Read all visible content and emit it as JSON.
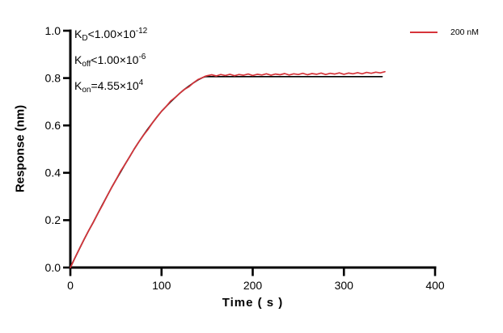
{
  "chart_data": {
    "type": "line",
    "title": "",
    "xlabel": "Time ( s )",
    "ylabel": "Response (nm)",
    "xlim": [
      0,
      400
    ],
    "ylim": [
      0,
      1.0
    ],
    "xticks": [
      0,
      100,
      200,
      300,
      400
    ],
    "yticks": [
      "0.0",
      "0.2",
      "0.4",
      "0.6",
      "0.8",
      "1.0"
    ],
    "grid": false,
    "legend_position": "top-right",
    "axis_color": "#000000",
    "annotations": [
      {
        "base": "K",
        "sub": "D",
        "mid": "<1.00×10",
        "sup": "-12"
      },
      {
        "base": "K",
        "sub": "off",
        "mid": "<1.00×10",
        "sup": "-6"
      },
      {
        "base": "K",
        "sub": "on",
        "mid": "=4.55×10",
        "sup": "4"
      }
    ],
    "series": [
      {
        "name": "200 nM",
        "role": "measured-data",
        "color": "#d6343a",
        "points": [
          [
            0,
            0.0
          ],
          [
            5,
            0.04
          ],
          [
            10,
            0.08
          ],
          [
            15,
            0.118
          ],
          [
            20,
            0.155
          ],
          [
            25,
            0.19
          ],
          [
            30,
            0.227
          ],
          [
            35,
            0.262
          ],
          [
            40,
            0.3
          ],
          [
            45,
            0.336
          ],
          [
            50,
            0.37
          ],
          [
            55,
            0.406
          ],
          [
            60,
            0.436
          ],
          [
            65,
            0.468
          ],
          [
            70,
            0.5
          ],
          [
            75,
            0.53
          ],
          [
            80,
            0.558
          ],
          [
            85,
            0.582
          ],
          [
            90,
            0.611
          ],
          [
            95,
            0.636
          ],
          [
            100,
            0.66
          ],
          [
            105,
            0.68
          ],
          [
            110,
            0.703
          ],
          [
            115,
            0.718
          ],
          [
            120,
            0.736
          ],
          [
            125,
            0.752
          ],
          [
            130,
            0.763
          ],
          [
            135,
            0.78
          ],
          [
            140,
            0.794
          ],
          [
            145,
            0.802
          ],
          [
            148,
            0.808
          ],
          [
            150,
            0.81
          ],
          [
            155,
            0.814
          ],
          [
            160,
            0.809
          ],
          [
            165,
            0.815
          ],
          [
            170,
            0.811
          ],
          [
            175,
            0.816
          ],
          [
            180,
            0.81
          ],
          [
            185,
            0.815
          ],
          [
            190,
            0.812
          ],
          [
            195,
            0.817
          ],
          [
            200,
            0.811
          ],
          [
            205,
            0.816
          ],
          [
            210,
            0.813
          ],
          [
            215,
            0.818
          ],
          [
            220,
            0.812
          ],
          [
            225,
            0.817
          ],
          [
            230,
            0.814
          ],
          [
            235,
            0.819
          ],
          [
            240,
            0.813
          ],
          [
            245,
            0.818
          ],
          [
            250,
            0.815
          ],
          [
            255,
            0.82
          ],
          [
            260,
            0.814
          ],
          [
            265,
            0.819
          ],
          [
            270,
            0.816
          ],
          [
            275,
            0.821
          ],
          [
            280,
            0.815
          ],
          [
            285,
            0.82
          ],
          [
            290,
            0.817
          ],
          [
            295,
            0.822
          ],
          [
            300,
            0.816
          ],
          [
            305,
            0.821
          ],
          [
            310,
            0.818
          ],
          [
            315,
            0.823
          ],
          [
            320,
            0.818
          ],
          [
            325,
            0.824
          ],
          [
            330,
            0.82
          ],
          [
            335,
            0.825
          ],
          [
            340,
            0.822
          ],
          [
            345,
            0.827
          ]
        ]
      },
      {
        "name": "fit",
        "role": "model-fit",
        "color": "#000000",
        "points": [
          [
            0,
            0.0
          ],
          [
            5,
            0.04
          ],
          [
            10,
            0.08
          ],
          [
            15,
            0.118
          ],
          [
            20,
            0.155
          ],
          [
            25,
            0.19
          ],
          [
            30,
            0.227
          ],
          [
            35,
            0.264
          ],
          [
            40,
            0.3
          ],
          [
            45,
            0.336
          ],
          [
            50,
            0.37
          ],
          [
            55,
            0.403
          ],
          [
            60,
            0.436
          ],
          [
            65,
            0.468
          ],
          [
            70,
            0.5
          ],
          [
            75,
            0.53
          ],
          [
            80,
            0.558
          ],
          [
            85,
            0.585
          ],
          [
            90,
            0.611
          ],
          [
            95,
            0.636
          ],
          [
            100,
            0.66
          ],
          [
            105,
            0.68
          ],
          [
            110,
            0.7
          ],
          [
            115,
            0.718
          ],
          [
            120,
            0.736
          ],
          [
            125,
            0.752
          ],
          [
            130,
            0.766
          ],
          [
            135,
            0.78
          ],
          [
            140,
            0.792
          ],
          [
            145,
            0.802
          ],
          [
            148,
            0.806
          ],
          [
            342,
            0.806
          ]
        ]
      }
    ]
  },
  "legend": {
    "label": "200 nM"
  }
}
